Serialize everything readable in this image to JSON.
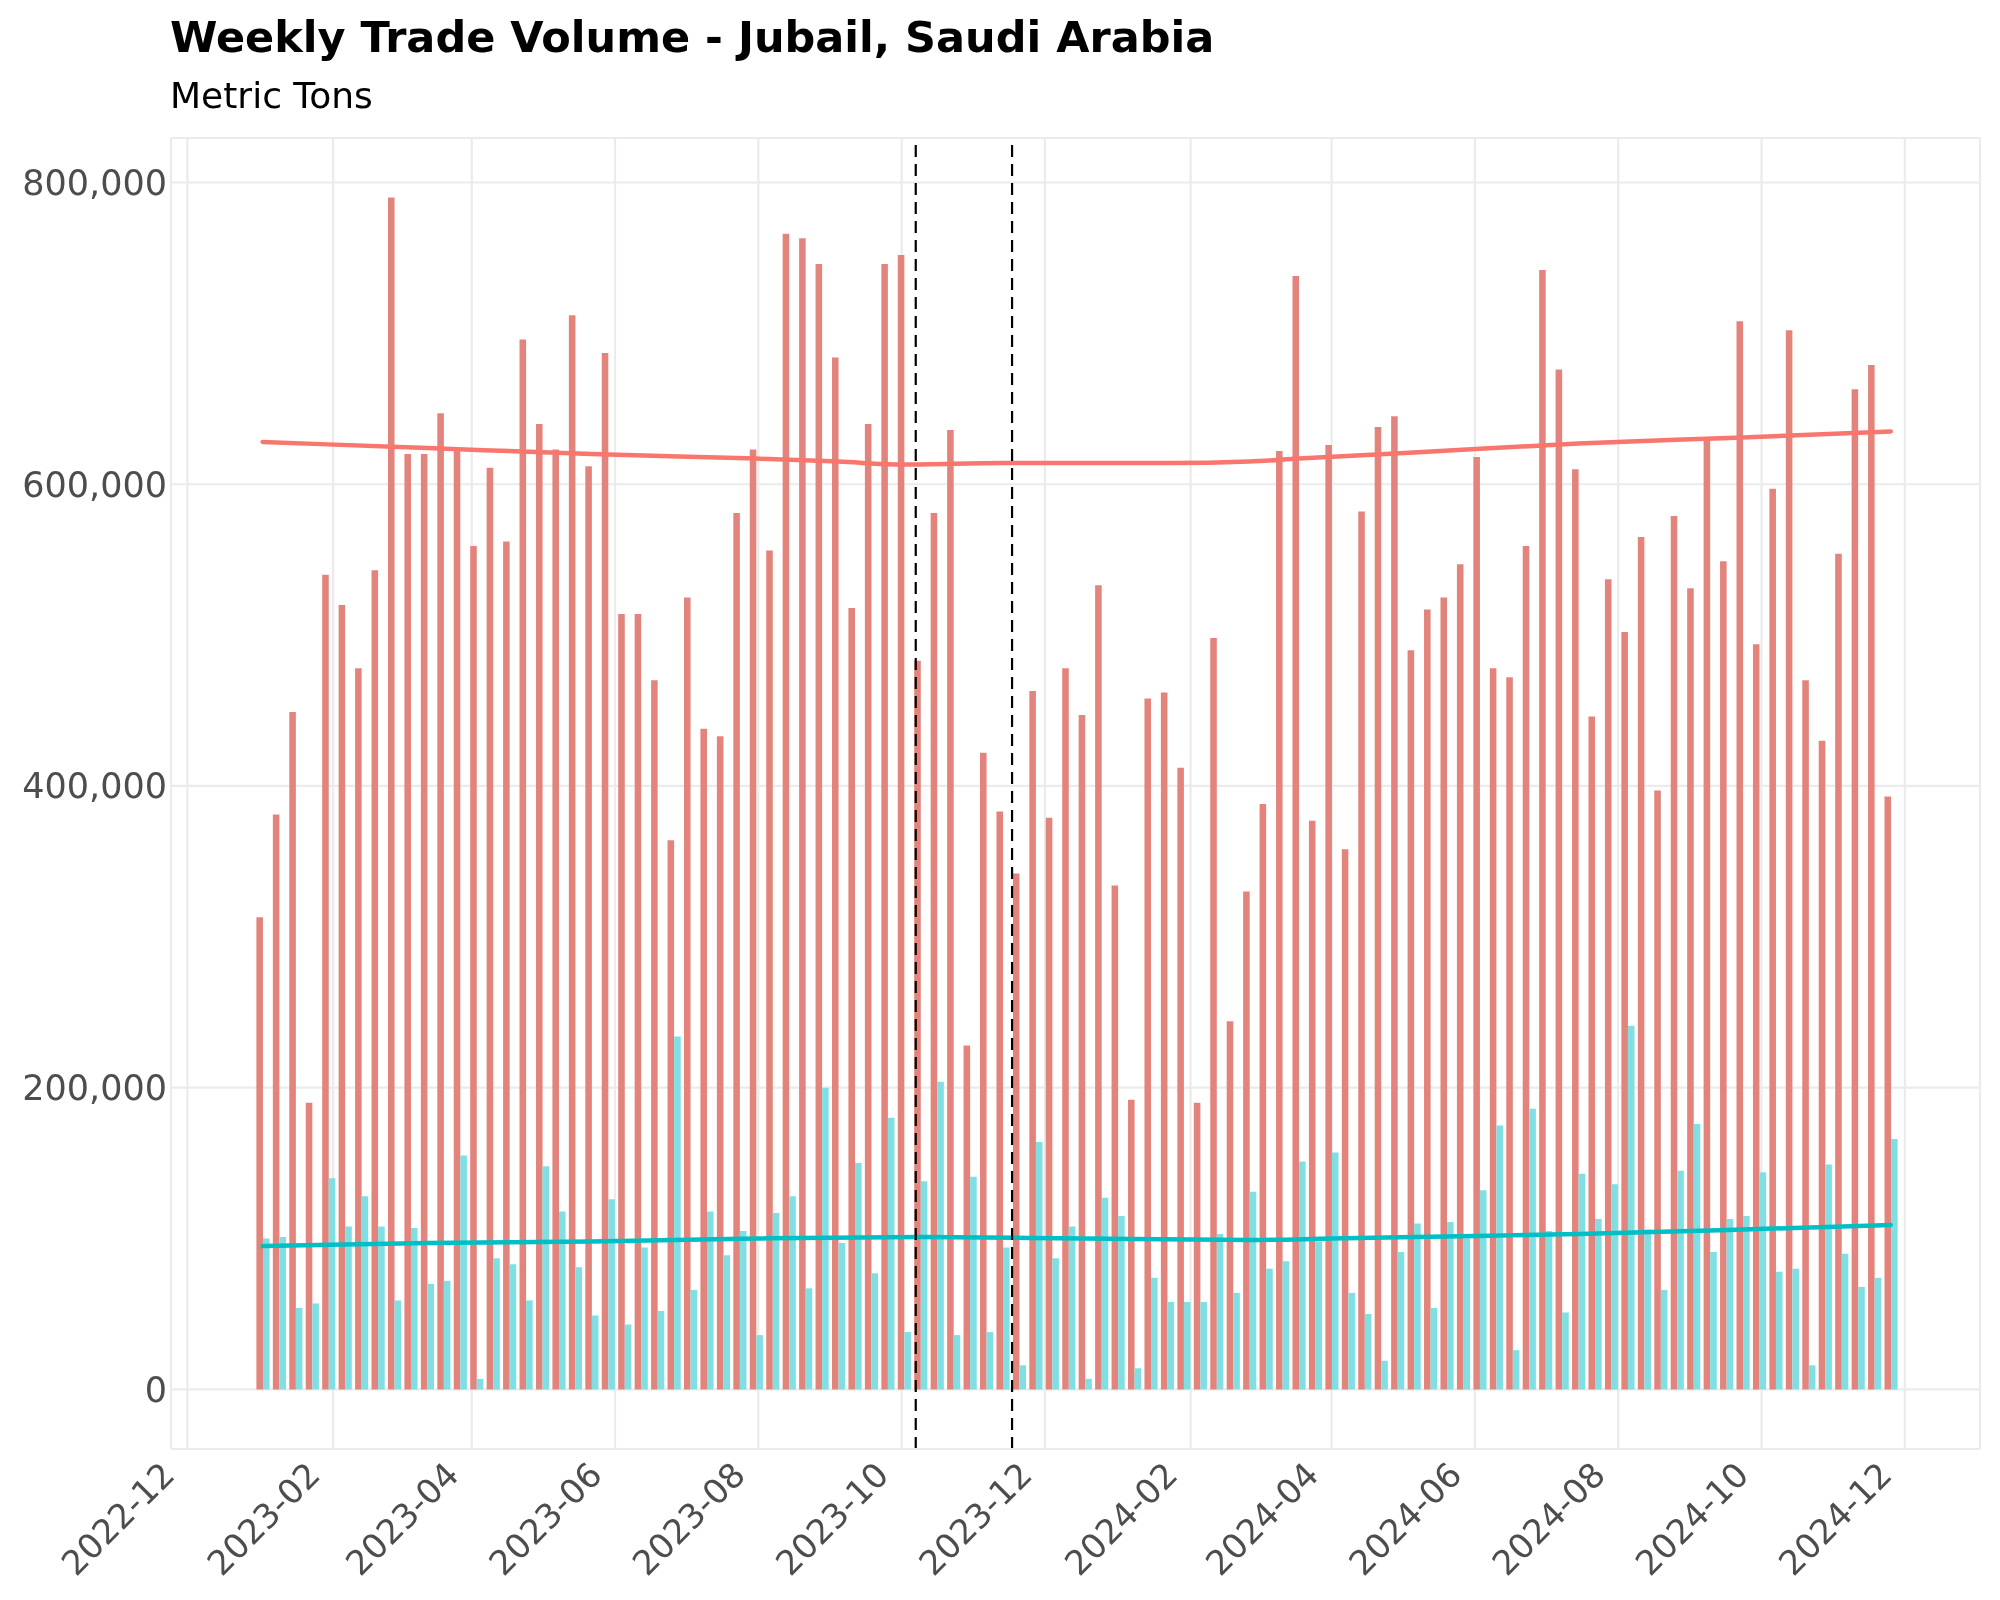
{
  "chart_data": {
    "type": "bar",
    "title": "Weekly Trade Volume - Jubail, Saudi Arabia",
    "subtitle": "Metric Tons",
    "x": [
      "2023-01-02",
      "2023-01-09",
      "2023-01-16",
      "2023-01-23",
      "2023-01-30",
      "2023-02-06",
      "2023-02-13",
      "2023-02-20",
      "2023-02-27",
      "2023-03-06",
      "2023-03-13",
      "2023-03-20",
      "2023-03-27",
      "2023-04-03",
      "2023-04-10",
      "2023-04-17",
      "2023-04-24",
      "2023-05-01",
      "2023-05-08",
      "2023-05-15",
      "2023-05-22",
      "2023-05-29",
      "2023-06-05",
      "2023-06-12",
      "2023-06-19",
      "2023-06-26",
      "2023-07-03",
      "2023-07-10",
      "2023-07-17",
      "2023-07-24",
      "2023-07-31",
      "2023-08-07",
      "2023-08-14",
      "2023-08-21",
      "2023-08-28",
      "2023-09-04",
      "2023-09-11",
      "2023-09-18",
      "2023-09-25",
      "2023-10-02",
      "2023-10-09",
      "2023-10-16",
      "2023-10-23",
      "2023-10-30",
      "2023-11-06",
      "2023-11-13",
      "2023-11-20",
      "2023-11-27",
      "2023-12-04",
      "2023-12-11",
      "2023-12-18",
      "2023-12-25",
      "2024-01-01",
      "2024-01-08",
      "2024-01-15",
      "2024-01-22",
      "2024-01-29",
      "2024-02-05",
      "2024-02-12",
      "2024-02-19",
      "2024-02-26",
      "2024-03-04",
      "2024-03-11",
      "2024-03-18",
      "2024-03-25",
      "2024-04-01",
      "2024-04-08",
      "2024-04-15",
      "2024-04-22",
      "2024-04-29",
      "2024-05-06",
      "2024-05-13",
      "2024-05-20",
      "2024-05-27",
      "2024-06-03",
      "2024-06-10",
      "2024-06-17",
      "2024-06-24",
      "2024-07-01",
      "2024-07-08",
      "2024-07-15",
      "2024-07-22",
      "2024-07-29",
      "2024-08-05",
      "2024-08-12",
      "2024-08-19",
      "2024-08-26",
      "2024-09-02",
      "2024-09-09",
      "2024-09-16",
      "2024-09-23",
      "2024-09-30",
      "2024-10-07",
      "2024-10-14",
      "2024-10-21",
      "2024-10-28",
      "2024-11-04",
      "2024-11-11",
      "2024-11-18",
      "2024-11-25"
    ],
    "series": [
      {
        "color": "#e3847c",
        "values": [
          313000,
          381000,
          449000,
          190000,
          540000,
          520000,
          478000,
          543000,
          790000,
          620000,
          620000,
          647000,
          624000,
          559000,
          611000,
          562000,
          696000,
          640000,
          623000,
          712000,
          612000,
          687000,
          514000,
          514000,
          470000,
          364000,
          525000,
          438000,
          433000,
          581000,
          623000,
          556000,
          766000,
          763000,
          746000,
          684000,
          518000,
          640000,
          746000,
          752000,
          483000,
          581000,
          636000,
          228000,
          422000,
          383000,
          342000,
          463000,
          379000,
          478000,
          447000,
          533000,
          334000,
          192000,
          458000,
          462000,
          412000,
          190000,
          498000,
          244000,
          330000,
          388000,
          622000,
          738000,
          377000,
          626000,
          358000,
          582000,
          638000,
          645000,
          490000,
          517000,
          525000,
          547000,
          618000,
          478000,
          472000,
          559000,
          742000,
          676000,
          610000,
          446000,
          537000,
          502000,
          565000,
          397000,
          579000,
          531000,
          630000,
          549000,
          708000,
          494000,
          597000,
          702000,
          470000,
          430000,
          554000,
          663000,
          679000,
          393000
        ]
      },
      {
        "color": "#80dfe3",
        "values": [
          100000,
          101000,
          54000,
          57000,
          140000,
          108000,
          128000,
          108000,
          59000,
          107000,
          70000,
          72000,
          155000,
          7000,
          87000,
          83000,
          59000,
          148000,
          118000,
          81000,
          49000,
          126000,
          43000,
          94000,
          52000,
          234000,
          66000,
          118000,
          89000,
          105000,
          36000,
          117000,
          128000,
          67000,
          200000,
          97000,
          150000,
          77000,
          180000,
          38000,
          138000,
          204000,
          36000,
          141000,
          38000,
          94000,
          16000,
          164000,
          87000,
          108000,
          7000,
          127000,
          115000,
          14000,
          74000,
          58000,
          58000,
          58000,
          103000,
          64000,
          131000,
          80000,
          85000,
          151000,
          98000,
          157000,
          64000,
          50000,
          19000,
          91000,
          110000,
          54000,
          111000,
          100000,
          132000,
          175000,
          26000,
          186000,
          105000,
          51000,
          143000,
          113000,
          136000,
          241000,
          106000,
          66000,
          145000,
          176000,
          91000,
          113000,
          115000,
          144000,
          78000,
          80000,
          16000,
          149000,
          90000,
          68000,
          74000,
          166000
        ]
      },
      {
        "type": "line",
        "color": "#f8766d",
        "x": [
          "2023-01-02",
          "2023-03-13",
          "2023-05-22",
          "2023-07-31",
          "2023-09-04",
          "2023-10-02",
          "2023-11-13",
          "2024-01-22",
          "2024-02-26",
          "2024-03-18",
          "2024-05-06",
          "2024-07-15",
          "2024-09-23",
          "2024-11-25"
        ],
        "values": [
          628000,
          624000,
          620000,
          617000,
          615000,
          613000,
          614000,
          614000,
          615000,
          617000,
          621000,
          627000,
          631000,
          635000
        ]
      },
      {
        "type": "line",
        "color": "#00bfc4",
        "x": [
          "2023-01-02",
          "2023-03-13",
          "2023-05-22",
          "2023-07-31",
          "2023-10-09",
          "2023-12-18",
          "2024-02-26",
          "2024-04-01",
          "2024-05-06",
          "2024-07-15",
          "2024-09-23",
          "2024-11-25"
        ],
        "values": [
          95000,
          97000,
          98000,
          100000,
          101000,
          100000,
          99000,
          100000,
          101000,
          103000,
          106000,
          109000
        ]
      }
    ],
    "xlim": [
      "2022-11-24",
      "2025-01-02"
    ],
    "xticks": [
      "2022-12",
      "2023-02",
      "2023-04",
      "2023-06",
      "2023-08",
      "2023-10",
      "2023-12",
      "2024-02",
      "2024-04",
      "2024-06",
      "2024-08",
      "2024-10",
      "2024-12"
    ],
    "ylim": [
      -39500,
      829500
    ],
    "yticks": [
      0,
      {
        "value": 200000,
        "label": "200,000"
      },
      {
        "value": 400000,
        "label": "400,000"
      },
      {
        "value": 600000,
        "label": "600,000"
      },
      {
        "value": 800000,
        "label": "800,000"
      }
    ],
    "grid": true,
    "ref_lines": [
      {
        "axis": "x",
        "value": "2023-10-07",
        "color": "#000000",
        "line_style": "dashed"
      },
      {
        "axis": "x",
        "value": "2023-11-17",
        "color": "#000000",
        "line_style": "dashed"
      }
    ]
  }
}
